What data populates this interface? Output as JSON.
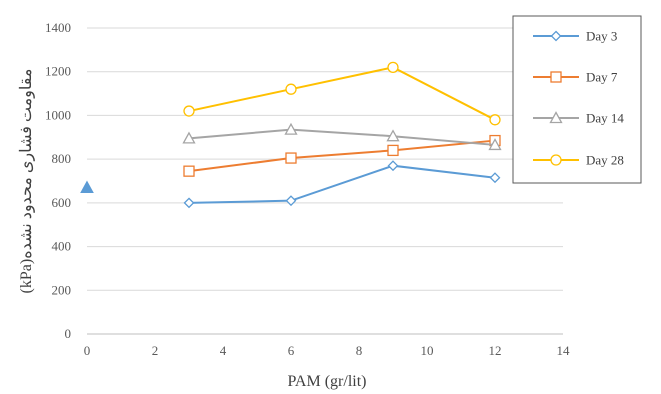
{
  "chart_data": {
    "type": "line",
    "xlabel": "PAM (gr/lit)",
    "ylabel": "(kPa)مقاومت فشاری محدود نشده",
    "xlim": [
      0,
      14
    ],
    "ylim": [
      0,
      1400
    ],
    "xticks": [
      0,
      2,
      4,
      6,
      8,
      10,
      12,
      14
    ],
    "yticks": [
      0,
      200,
      400,
      600,
      800,
      1000,
      1200,
      1400
    ],
    "grid": "horizontal",
    "legend_position": "right",
    "series": [
      {
        "name": "Day 3",
        "color": "#5B9BD5",
        "marker": "diamond",
        "x": [
          3,
          6,
          9,
          12
        ],
        "y": [
          600,
          610,
          770,
          715
        ]
      },
      {
        "name": "Day 7",
        "color": "#ED7D31",
        "marker": "square",
        "x": [
          3,
          6,
          9,
          12
        ],
        "y": [
          745,
          805,
          840,
          885
        ]
      },
      {
        "name": "Day 14",
        "color": "#A5A5A5",
        "marker": "triangle",
        "x": [
          3,
          6,
          9,
          12
        ],
        "y": [
          895,
          935,
          905,
          865
        ]
      },
      {
        "name": "Day 28",
        "color": "#FFC000",
        "marker": "circle",
        "x": [
          3,
          6,
          9,
          12
        ],
        "y": [
          1020,
          1120,
          1220,
          980
        ]
      }
    ],
    "extra_points": [
      {
        "x": 0,
        "y": 670,
        "color": "#5B9BD5",
        "marker": "filled-triangle"
      }
    ]
  }
}
